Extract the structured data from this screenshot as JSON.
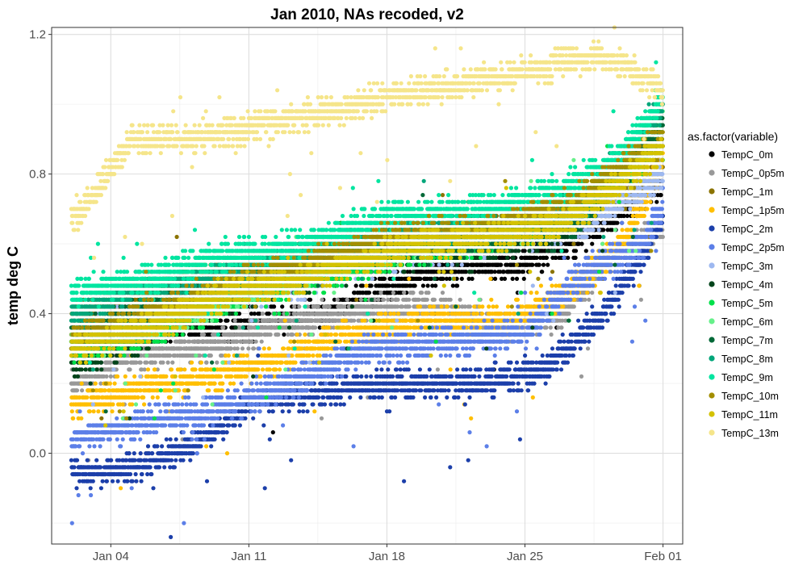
{
  "chart_data": {
    "type": "scatter",
    "title": "Jan 2010, NAs recoded, v2",
    "xlabel": "",
    "ylabel": "temp deg C",
    "x_axis": "date",
    "xlim": [
      "2010-01-01",
      "2010-02-02"
    ],
    "ylim": [
      -0.26,
      1.22
    ],
    "x_ticks": [
      {
        "date": "2010-01-04",
        "label": "Jan 04"
      },
      {
        "date": "2010-01-11",
        "label": "Jan 11"
      },
      {
        "date": "2010-01-18",
        "label": "Jan 18"
      },
      {
        "date": "2010-01-25",
        "label": "Jan 25"
      },
      {
        "date": "2010-02-01",
        "label": "Feb 01"
      }
    ],
    "y_ticks": [
      0.0,
      0.4,
      0.8,
      1.2
    ],
    "y_tick_labels": [
      "0.0",
      "0.4",
      "0.8",
      "1.2"
    ],
    "grid": true,
    "legend": {
      "title": "as.factor(variable)",
      "placement": "right"
    },
    "series": [
      {
        "name": "TempC_0m",
        "color": "#000000",
        "values": [
          [
            "2010-01-02",
            0.3
          ],
          [
            "2010-01-05",
            0.34
          ],
          [
            "2010-01-10",
            0.36
          ],
          [
            "2010-01-15",
            0.4
          ],
          [
            "2010-01-20",
            0.52
          ],
          [
            "2010-01-25",
            0.55
          ],
          [
            "2010-01-28",
            0.62
          ],
          [
            "2010-02-01",
            0.78
          ]
        ]
      },
      {
        "name": "TempC_0p5m",
        "color": "#999999",
        "values": [
          [
            "2010-01-02",
            0.2
          ],
          [
            "2010-01-05",
            0.28
          ],
          [
            "2010-01-09",
            0.3
          ],
          [
            "2010-01-12",
            0.36
          ],
          [
            "2010-01-16",
            0.4
          ],
          [
            "2010-01-20",
            0.42
          ],
          [
            "2010-01-24",
            0.36
          ],
          [
            "2010-01-27",
            0.4
          ],
          [
            "2010-01-30",
            0.6
          ],
          [
            "2010-02-01",
            0.64
          ]
        ]
      },
      {
        "name": "TempC_1m",
        "color": "#8B7300",
        "values": [
          [
            "2010-01-02",
            0.38
          ],
          [
            "2010-01-05",
            0.44
          ],
          [
            "2010-01-08",
            0.5
          ],
          [
            "2010-01-12",
            0.52
          ],
          [
            "2010-01-16",
            0.6
          ],
          [
            "2010-01-20",
            0.62
          ],
          [
            "2010-01-24",
            0.65
          ],
          [
            "2010-01-27",
            0.7
          ],
          [
            "2010-01-30",
            0.74
          ],
          [
            "2010-02-01",
            0.82
          ]
        ]
      },
      {
        "name": "TempC_1p5m",
        "color": "#FFBF00",
        "values": [
          [
            "2010-01-02",
            0.14
          ],
          [
            "2010-01-05",
            0.18
          ],
          [
            "2010-01-09",
            0.22
          ],
          [
            "2010-01-12",
            0.26
          ],
          [
            "2010-01-16",
            0.34
          ],
          [
            "2010-01-20",
            0.38
          ],
          [
            "2010-01-24",
            0.38
          ],
          [
            "2010-01-27",
            0.46
          ],
          [
            "2010-01-30",
            0.6
          ],
          [
            "2010-02-01",
            0.84
          ]
        ]
      },
      {
        "name": "TempC_2m",
        "color": "#1C3FAA",
        "values": [
          [
            "2010-01-02",
            -0.06
          ],
          [
            "2010-01-05",
            -0.04
          ],
          [
            "2010-01-08",
            0.02
          ],
          [
            "2010-01-11",
            0.14
          ],
          [
            "2010-01-15",
            0.18
          ],
          [
            "2010-01-19",
            0.2
          ],
          [
            "2010-01-23",
            0.2
          ],
          [
            "2010-01-26",
            0.24
          ],
          [
            "2010-01-29",
            0.4
          ],
          [
            "2010-02-01",
            0.66
          ]
        ]
      },
      {
        "name": "TempC_2p5m",
        "color": "#5C7FE8",
        "values": [
          [
            "2010-01-02",
            0.04
          ],
          [
            "2010-01-05",
            0.08
          ],
          [
            "2010-01-09",
            0.12
          ],
          [
            "2010-01-13",
            0.2
          ],
          [
            "2010-01-17",
            0.3
          ],
          [
            "2010-01-21",
            0.32
          ],
          [
            "2010-01-25",
            0.34
          ],
          [
            "2010-01-28",
            0.52
          ],
          [
            "2010-01-31",
            0.6
          ],
          [
            "2010-02-01",
            0.72
          ]
        ]
      },
      {
        "name": "TempC_3m",
        "color": "#9DB8F0",
        "values": [
          [
            "2010-01-02",
            0.36
          ],
          [
            "2010-01-07",
            0.4
          ],
          [
            "2010-01-12",
            0.46
          ],
          [
            "2010-01-18",
            0.56
          ],
          [
            "2010-01-23",
            0.6
          ],
          [
            "2010-01-28",
            0.66
          ],
          [
            "2010-02-01",
            0.8
          ]
        ]
      },
      {
        "name": "TempC_4m",
        "color": "#00441B",
        "values": [
          [
            "2010-01-02",
            0.26
          ],
          [
            "2010-01-05",
            0.32
          ],
          [
            "2010-01-08",
            0.4
          ],
          [
            "2010-01-12",
            0.48
          ],
          [
            "2010-01-16",
            0.54
          ],
          [
            "2010-01-20",
            0.58
          ],
          [
            "2010-01-24",
            0.6
          ],
          [
            "2010-01-27",
            0.64
          ],
          [
            "2010-01-30",
            0.82
          ],
          [
            "2010-02-01",
            0.92
          ]
        ]
      },
      {
        "name": "TempC_5m",
        "color": "#00E04A",
        "values": [
          [
            "2010-01-02",
            0.3
          ],
          [
            "2010-01-06",
            0.34
          ],
          [
            "2010-01-10",
            0.44
          ],
          [
            "2010-01-14",
            0.5
          ],
          [
            "2010-01-19",
            0.58
          ],
          [
            "2010-01-24",
            0.62
          ],
          [
            "2010-01-28",
            0.7
          ],
          [
            "2010-02-01",
            0.9
          ]
        ]
      },
      {
        "name": "TempC_6m",
        "color": "#66F08A",
        "values": [
          [
            "2010-01-02",
            0.34
          ],
          [
            "2010-01-06",
            0.38
          ],
          [
            "2010-01-11",
            0.46
          ],
          [
            "2010-01-16",
            0.56
          ],
          [
            "2010-01-21",
            0.62
          ],
          [
            "2010-01-26",
            0.66
          ],
          [
            "2010-01-30",
            0.8
          ],
          [
            "2010-02-01",
            0.96
          ]
        ]
      },
      {
        "name": "TempC_7m",
        "color": "#006837",
        "values": [
          [
            "2010-01-02",
            0.34
          ],
          [
            "2010-01-06",
            0.42
          ],
          [
            "2010-01-10",
            0.5
          ],
          [
            "2010-01-14",
            0.56
          ],
          [
            "2010-01-19",
            0.6
          ],
          [
            "2010-01-24",
            0.62
          ],
          [
            "2010-01-28",
            0.68
          ],
          [
            "2010-02-01",
            0.95
          ]
        ]
      },
      {
        "name": "TempC_8m",
        "color": "#00A67A",
        "values": [
          [
            "2010-01-02",
            0.4
          ],
          [
            "2010-01-06",
            0.48
          ],
          [
            "2010-01-10",
            0.52
          ],
          [
            "2010-01-14",
            0.58
          ],
          [
            "2010-01-19",
            0.64
          ],
          [
            "2010-01-24",
            0.66
          ],
          [
            "2010-01-28",
            0.72
          ],
          [
            "2010-02-01",
            1.0
          ]
        ]
      },
      {
        "name": "TempC_9m",
        "color": "#00E5A0",
        "values": [
          [
            "2010-01-02",
            0.46
          ],
          [
            "2010-01-06",
            0.5
          ],
          [
            "2010-01-09",
            0.56
          ],
          [
            "2010-01-14",
            0.6
          ],
          [
            "2010-01-18",
            0.68
          ],
          [
            "2010-01-23",
            0.7
          ],
          [
            "2010-01-27",
            0.76
          ],
          [
            "2010-01-30",
            0.86
          ],
          [
            "2010-02-01",
            1.02
          ]
        ]
      },
      {
        "name": "TempC_10m",
        "color": "#A38E00",
        "values": [
          [
            "2010-01-02",
            0.32
          ],
          [
            "2010-01-06",
            0.4
          ],
          [
            "2010-01-10",
            0.48
          ],
          [
            "2010-01-14",
            0.54
          ],
          [
            "2010-01-18",
            0.62
          ],
          [
            "2010-01-23",
            0.64
          ],
          [
            "2010-01-27",
            0.7
          ],
          [
            "2010-02-01",
            0.9
          ]
        ]
      },
      {
        "name": "TempC_11m",
        "color": "#D4C200",
        "values": [
          [
            "2010-01-02",
            0.3
          ],
          [
            "2010-01-06",
            0.36
          ],
          [
            "2010-01-10",
            0.46
          ],
          [
            "2010-01-14",
            0.5
          ],
          [
            "2010-01-18",
            0.58
          ],
          [
            "2010-01-23",
            0.62
          ],
          [
            "2010-01-27",
            0.66
          ],
          [
            "2010-01-30",
            0.78
          ],
          [
            "2010-02-01",
            0.88
          ]
        ]
      },
      {
        "name": "TempC_13m",
        "color": "#F5E58A",
        "values": [
          [
            "2010-01-02",
            0.68
          ],
          [
            "2010-01-03",
            0.72
          ],
          [
            "2010-01-04",
            0.82
          ],
          [
            "2010-01-05",
            0.9
          ],
          [
            "2010-01-08",
            0.9
          ],
          [
            "2010-01-10",
            0.92
          ],
          [
            "2010-01-12",
            0.95
          ],
          [
            "2010-01-15",
            0.98
          ],
          [
            "2010-01-18",
            1.02
          ],
          [
            "2010-01-21",
            1.05
          ],
          [
            "2010-01-24",
            1.08
          ],
          [
            "2010-01-27",
            1.12
          ],
          [
            "2010-01-29",
            1.14
          ],
          [
            "2010-01-31",
            1.08
          ],
          [
            "2010-02-01",
            1.04
          ]
        ]
      }
    ]
  }
}
